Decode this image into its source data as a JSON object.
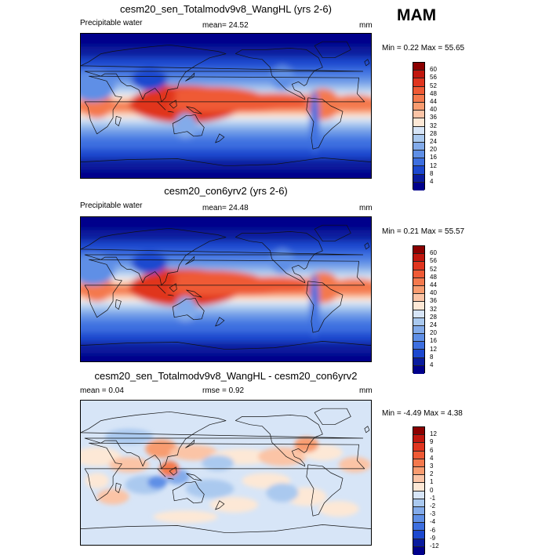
{
  "season": "MAM",
  "panels": [
    {
      "title": "cesm20_sen_Totalmodv9v8_WangHL (yrs 2-6)",
      "left_label": "Precipitable water",
      "center_label": "mean=  24.52",
      "right_label": "mm",
      "minmax": "Min =  0.22 Max =  55.65",
      "kind": "abs",
      "levels": [
        "60",
        "56",
        "52",
        "48",
        "44",
        "40",
        "36",
        "32",
        "28",
        "24",
        "20",
        "16",
        "12",
        "8",
        "4"
      ],
      "colors": [
        "#8b0000",
        "#c1170e",
        "#e0351f",
        "#ef5a35",
        "#f4794d",
        "#f89c70",
        "#fbc4a6",
        "#fde8d6",
        "#d7e5f7",
        "#aac9ef",
        "#83abea",
        "#5f8fe6",
        "#3d6fe0",
        "#1c48cf",
        "#0a1c9e",
        "#00008b"
      ]
    },
    {
      "title": "cesm20_con6yrv2 (yrs 2-6)",
      "left_label": "Precipitable water",
      "center_label": "mean=  24.48",
      "right_label": "mm",
      "minmax": "Min =  0.21 Max =  55.57",
      "kind": "abs",
      "levels": [
        "60",
        "56",
        "52",
        "48",
        "44",
        "40",
        "36",
        "32",
        "28",
        "24",
        "20",
        "16",
        "12",
        "8",
        "4"
      ],
      "colors": [
        "#8b0000",
        "#c1170e",
        "#e0351f",
        "#ef5a35",
        "#f4794d",
        "#f89c70",
        "#fbc4a6",
        "#fde8d6",
        "#d7e5f7",
        "#aac9ef",
        "#83abea",
        "#5f8fe6",
        "#3d6fe0",
        "#1c48cf",
        "#0a1c9e",
        "#00008b"
      ]
    },
    {
      "title": "cesm20_sen_Totalmodv9v8_WangHL - cesm20_con6yrv2",
      "left_label": "mean =   0.04",
      "center_label": "rmse =   0.92",
      "right_label": "mm",
      "minmax": "Min =  -4.49 Max =  4.38",
      "kind": "diff",
      "levels": [
        "12",
        "9",
        "6",
        "4",
        "3",
        "2",
        "1",
        "0",
        "-1",
        "-2",
        "-3",
        "-4",
        "-6",
        "-9",
        "-12"
      ],
      "colors": [
        "#8b0000",
        "#c1170e",
        "#e0351f",
        "#ef5a35",
        "#f4794d",
        "#f89c70",
        "#fbc4a6",
        "#fde8d6",
        "#d7e5f7",
        "#aac9ef",
        "#83abea",
        "#5f8fe6",
        "#3d6fe0",
        "#1c48cf",
        "#0a1c9e",
        "#00008b"
      ]
    }
  ]
}
